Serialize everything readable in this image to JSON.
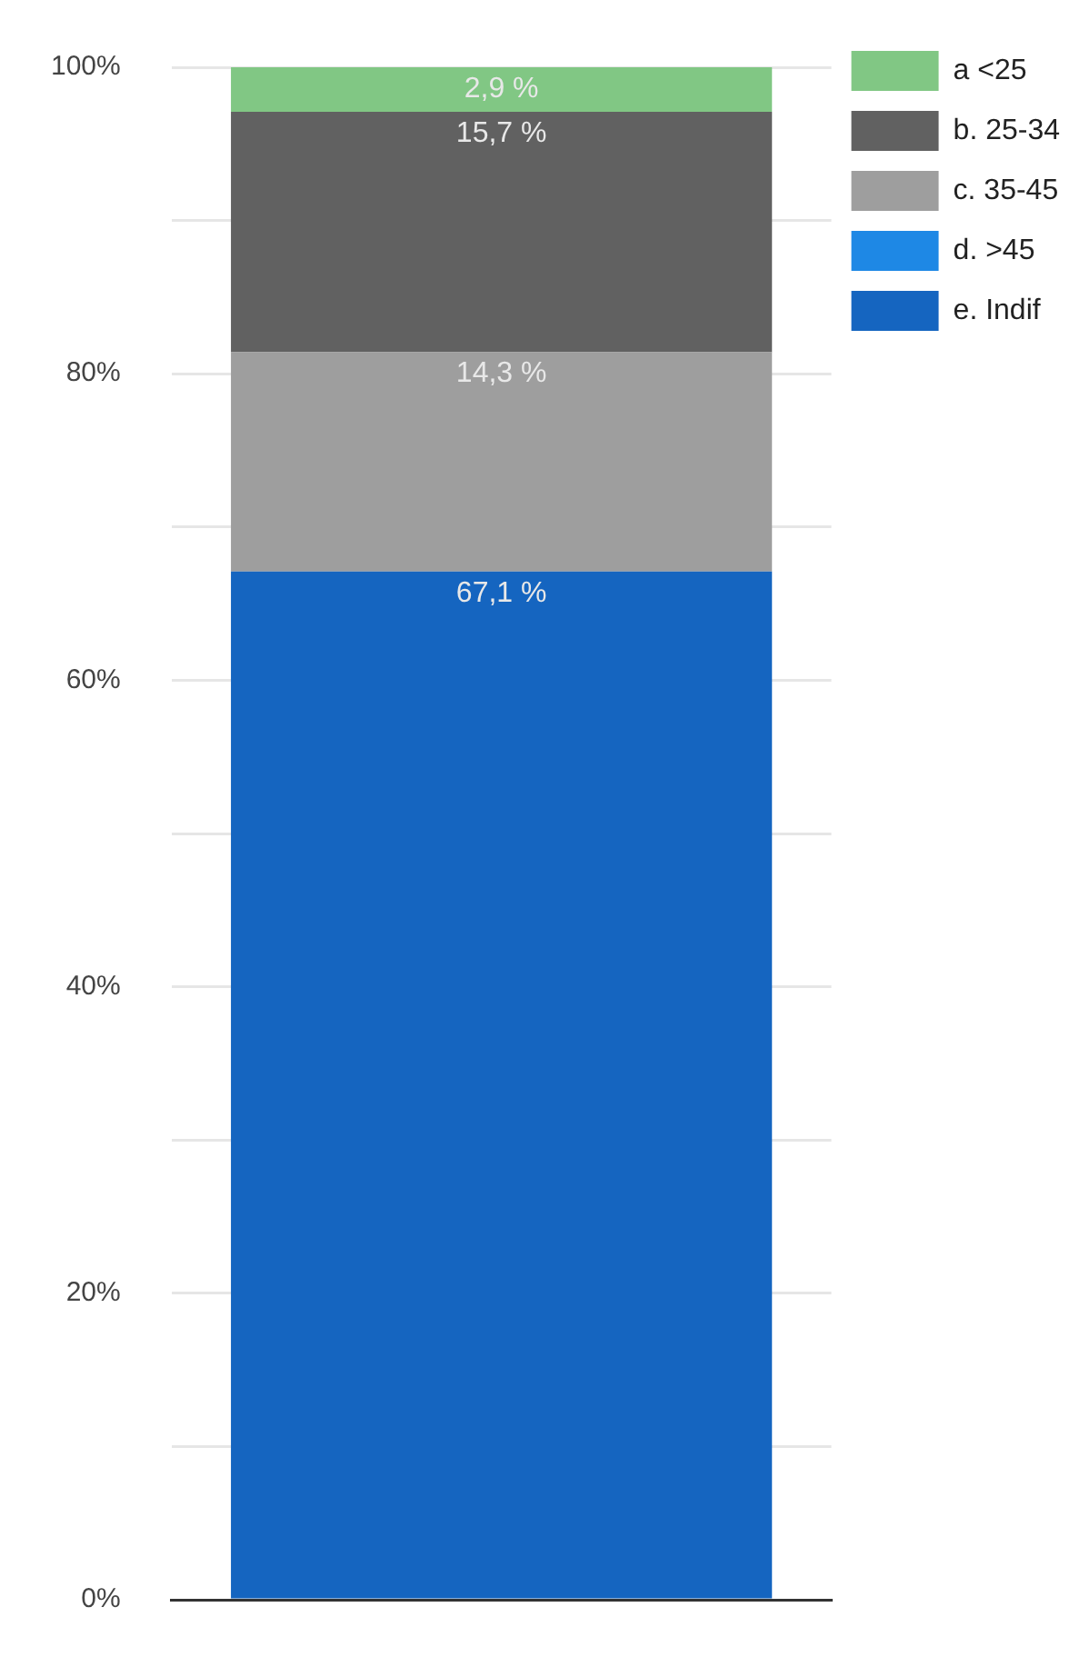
{
  "chart_data": {
    "type": "bar",
    "stacked": true,
    "categories": [
      null
    ],
    "series": [
      {
        "name": "e. Indif",
        "color": "#1565c0",
        "values": [
          67.1
        ],
        "value_labels": [
          "67,1 %"
        ]
      },
      {
        "name": "d. >45",
        "color": "#1e88e5",
        "values": [
          0
        ],
        "value_labels": [
          null
        ]
      },
      {
        "name": "c. 35-45",
        "color": "#9e9e9e",
        "values": [
          14.3
        ],
        "value_labels": [
          "14,3 %"
        ]
      },
      {
        "name": "b. 25-34",
        "color": "#616161",
        "values": [
          15.7
        ],
        "value_labels": [
          "15,7 %"
        ]
      },
      {
        "name": "a <25",
        "color": "#81c784",
        "values": [
          2.9
        ],
        "value_labels": [
          "2,9 %"
        ]
      }
    ],
    "ylim": [
      0,
      100
    ],
    "yticks": [
      {
        "value": 0,
        "label": "0%"
      },
      {
        "value": 10,
        "label": null
      },
      {
        "value": 20,
        "label": "20%"
      },
      {
        "value": 30,
        "label": null
      },
      {
        "value": 40,
        "label": "40%"
      },
      {
        "value": 50,
        "label": null
      },
      {
        "value": 60,
        "label": "60%"
      },
      {
        "value": 70,
        "label": null
      },
      {
        "value": 80,
        "label": "80%"
      },
      {
        "value": 90,
        "label": null
      },
      {
        "value": 100,
        "label": "100%"
      }
    ],
    "grid": "y",
    "legend": "top right",
    "tick_labels": "y"
  }
}
